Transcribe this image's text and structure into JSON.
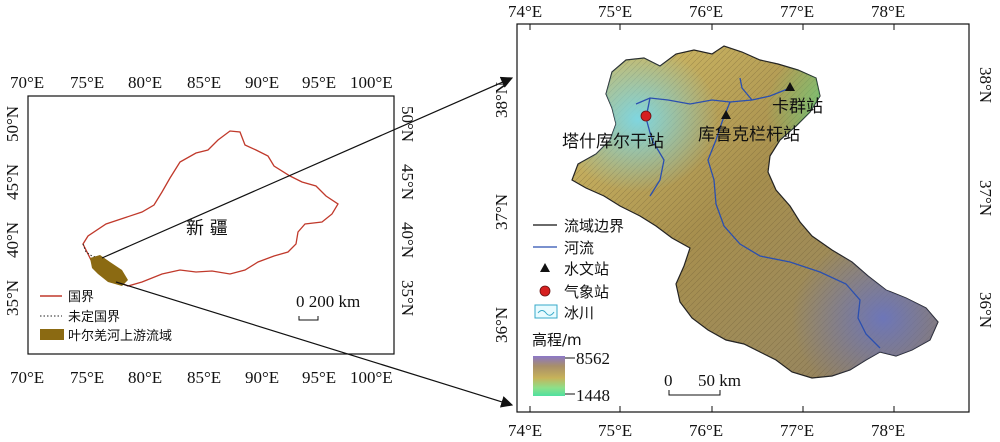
{
  "left_map": {
    "lon_ticks": [
      "70°E",
      "75°E",
      "80°E",
      "85°E",
      "90°E",
      "95°E",
      "100°E"
    ],
    "lat_ticks": [
      "35°N",
      "40°N",
      "45°N",
      "50°N"
    ],
    "region_label": "新 疆",
    "scale_label": "0 200 km",
    "legend": [
      {
        "label": "国界",
        "symbol": "red-line",
        "color": "#c0392b"
      },
      {
        "label": "未定国界",
        "symbol": "dotted-line",
        "color": "#222222"
      },
      {
        "label": "叶尔羌河上游流域",
        "symbol": "filled-box",
        "color": "#8b6a12"
      }
    ]
  },
  "right_map": {
    "lon_ticks": [
      "74°E",
      "75°E",
      "76°E",
      "77°E",
      "78°E"
    ],
    "lat_ticks": [
      "36°N",
      "37°N",
      "38°N"
    ],
    "stations": [
      {
        "name": "卡群站",
        "type": "hydrological"
      },
      {
        "name": "库鲁克栏杆站",
        "type": "hydrological"
      },
      {
        "name": "塔什库尔干站",
        "type": "meteorological"
      }
    ],
    "legend": [
      {
        "label": "流域边界",
        "symbol": "black-line"
      },
      {
        "label": "河流",
        "symbol": "blue-line"
      },
      {
        "label": "水文站",
        "symbol": "triangle"
      },
      {
        "label": "气象站",
        "symbol": "red-circle"
      },
      {
        "label": "冰川",
        "symbol": "glacier"
      }
    ],
    "elevation": {
      "title": "高程/m",
      "max": "8562",
      "min": "1448"
    },
    "scale_label": "0      50 km"
  },
  "colors": {
    "border": "#c0392b",
    "basin": "#8b6a12",
    "river": "#2a4fb0",
    "station": "#d62020"
  }
}
